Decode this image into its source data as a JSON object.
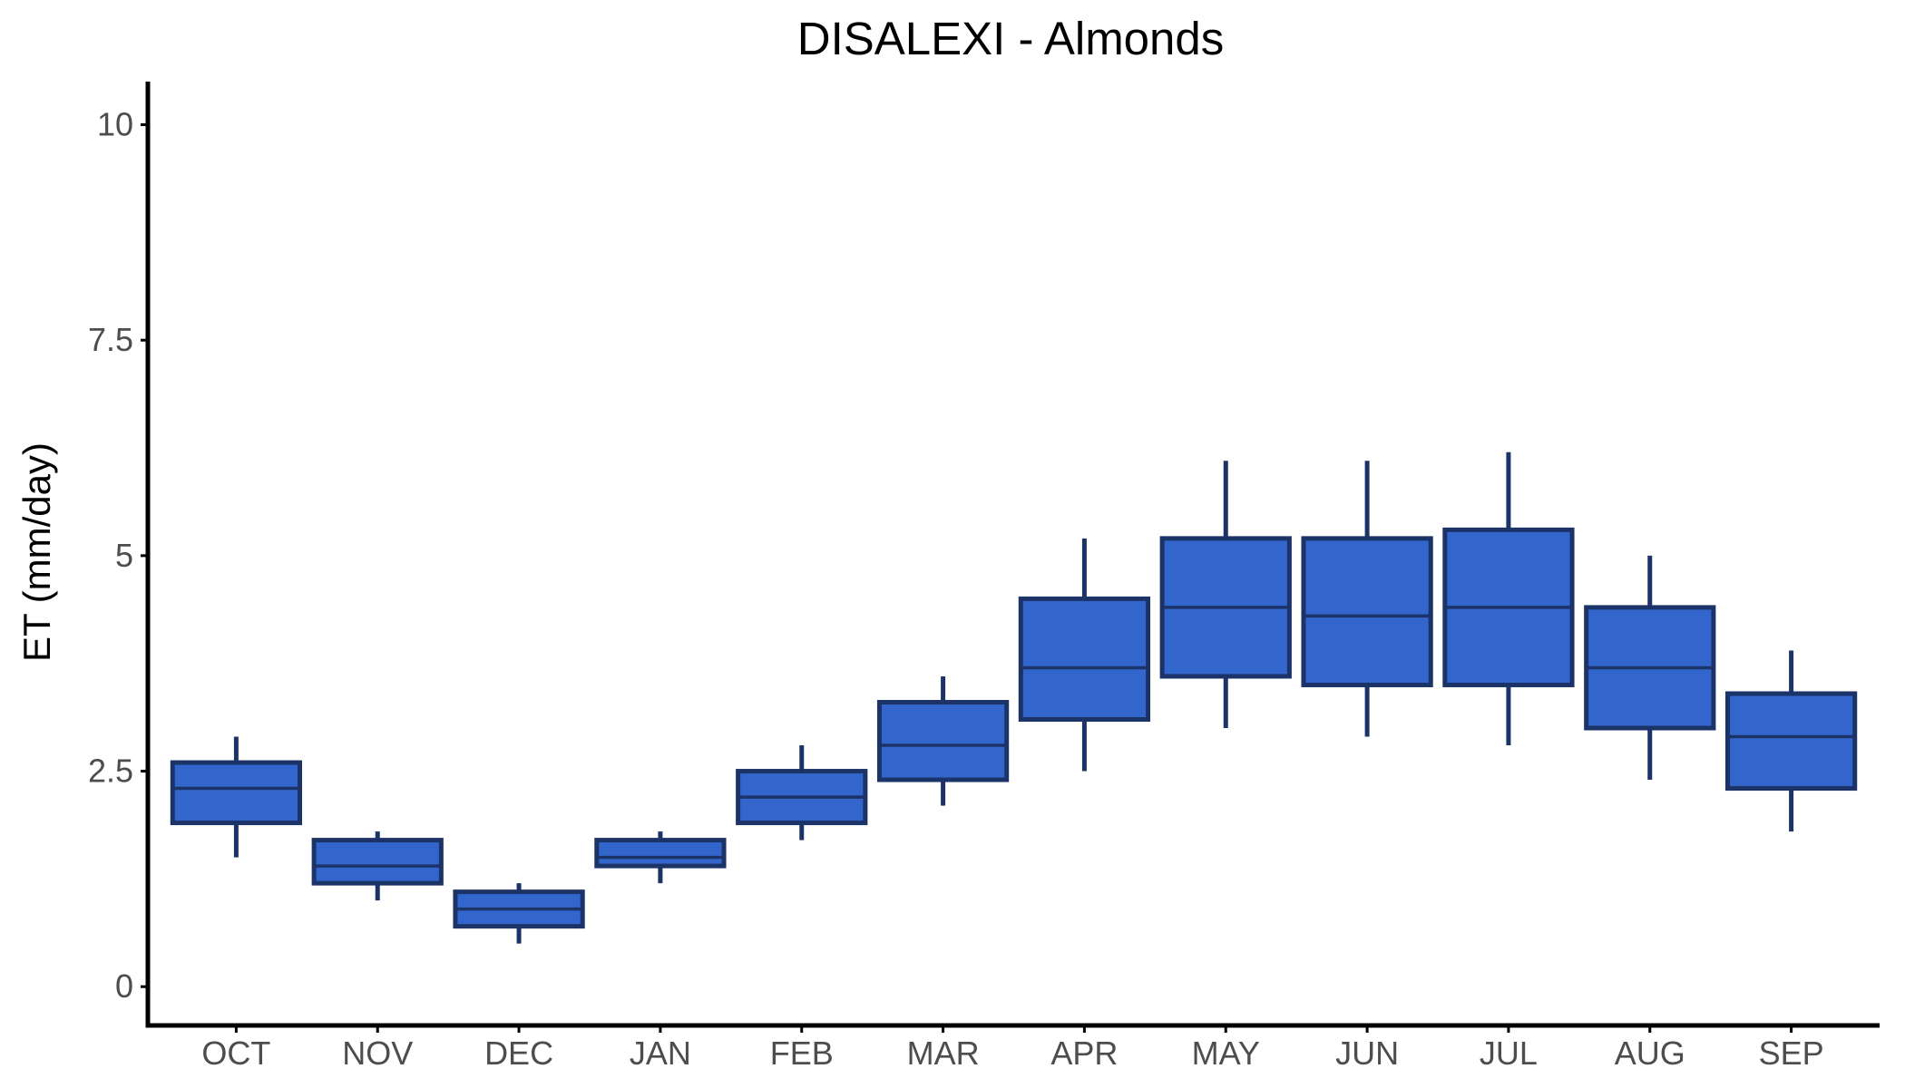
{
  "chart_data": {
    "type": "box",
    "title": "DISALEXI - Almonds",
    "xlabel": "",
    "ylabel": "ET (mm/day)",
    "ylim": [
      -0.45,
      10.5
    ],
    "yticks": [
      0,
      2.5,
      5,
      7.5,
      10
    ],
    "ytick_labels": [
      "0",
      "2.5",
      "5",
      "7.5",
      "10"
    ],
    "grid": false,
    "legend": "none",
    "categories": [
      "OCT",
      "NOV",
      "DEC",
      "JAN",
      "FEB",
      "MAR",
      "APR",
      "MAY",
      "JUN",
      "JUL",
      "AUG",
      "SEP"
    ],
    "series": [
      {
        "boxes": [
          {
            "min": 1.5,
            "q1": 1.9,
            "median": 2.3,
            "q3": 2.6,
            "max": 2.9
          },
          {
            "min": 1.0,
            "q1": 1.2,
            "median": 1.4,
            "q3": 1.7,
            "max": 1.8
          },
          {
            "min": 0.5,
            "q1": 0.7,
            "median": 0.9,
            "q3": 1.1,
            "max": 1.2
          },
          {
            "min": 1.2,
            "q1": 1.4,
            "median": 1.5,
            "q3": 1.7,
            "max": 1.8
          },
          {
            "min": 1.7,
            "q1": 1.9,
            "median": 2.2,
            "q3": 2.5,
            "max": 2.8
          },
          {
            "min": 2.1,
            "q1": 2.4,
            "median": 2.8,
            "q3": 3.3,
            "max": 3.6
          },
          {
            "min": 2.5,
            "q1": 3.1,
            "median": 3.7,
            "q3": 4.5,
            "max": 5.2
          },
          {
            "min": 3.0,
            "q1": 3.6,
            "median": 4.4,
            "q3": 5.2,
            "max": 6.1
          },
          {
            "min": 2.9,
            "q1": 3.5,
            "median": 4.3,
            "q3": 5.2,
            "max": 6.1
          },
          {
            "min": 2.8,
            "q1": 3.5,
            "median": 4.4,
            "q3": 5.3,
            "max": 6.2
          },
          {
            "min": 2.4,
            "q1": 3.0,
            "median": 3.7,
            "q3": 4.4,
            "max": 5.0
          },
          {
            "min": 1.8,
            "q1": 2.3,
            "median": 2.9,
            "q3": 3.4,
            "max": 3.9
          }
        ]
      }
    ],
    "colors": {
      "box_fill": "#3366CC",
      "box_stroke": "#1B3366",
      "axis": "#000000",
      "tick_text": "#4d4d4d"
    }
  }
}
